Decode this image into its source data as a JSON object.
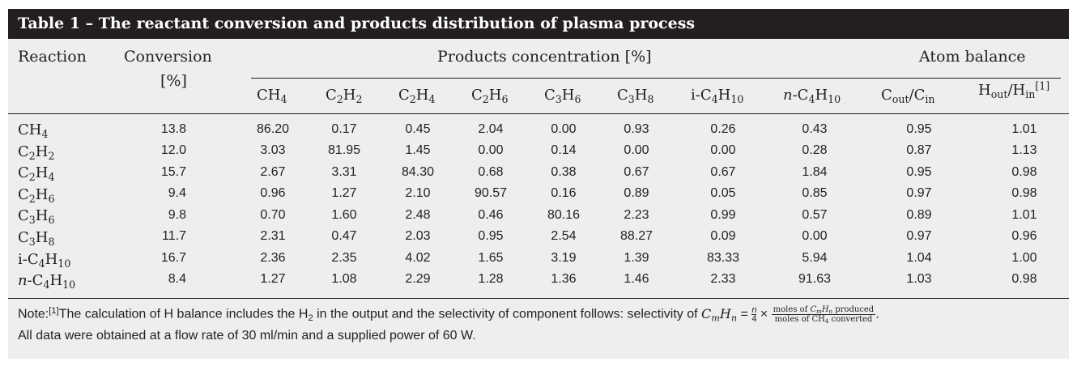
{
  "table": {
    "title": "Table 1 – The reactant conversion and products distribution of plasma process",
    "headers": {
      "reaction": "Reaction",
      "conversion": "Conversion",
      "conversion_unit": "[%]",
      "products": "Products concentration [%]",
      "atom_balance": "Atom balance",
      "columns": [
        "CH4",
        "C2H2",
        "C2H4",
        "C2H6",
        "C3H6",
        "C3H8",
        "i-C4H10",
        "n-C4H10",
        "Cout/Cin",
        "Hout/Hin"
      ],
      "h_balance_ref": "[1]"
    },
    "rows": [
      {
        "reaction": "CH4",
        "conversion": "13.8",
        "values": [
          "86.20",
          "0.17",
          "0.45",
          "2.04",
          "0.00",
          "0.93",
          "0.26",
          "0.43",
          "0.95",
          "1.01"
        ]
      },
      {
        "reaction": "C2H2",
        "conversion": "12.0",
        "values": [
          "3.03",
          "81.95",
          "1.45",
          "0.00",
          "0.14",
          "0.00",
          "0.00",
          "0.28",
          "0.87",
          "1.13"
        ]
      },
      {
        "reaction": "C2H4",
        "conversion": "15.7",
        "values": [
          "2.67",
          "3.31",
          "84.30",
          "0.68",
          "0.38",
          "0.67",
          "0.67",
          "1.84",
          "0.95",
          "0.98"
        ]
      },
      {
        "reaction": "C2H6",
        "conversion": "9.4",
        "values": [
          "0.96",
          "1.27",
          "2.10",
          "90.57",
          "0.16",
          "0.89",
          "0.05",
          "0.85",
          "0.97",
          "0.98"
        ]
      },
      {
        "reaction": "C3H6",
        "conversion": "9.8",
        "values": [
          "0.70",
          "1.60",
          "2.48",
          "0.46",
          "80.16",
          "2.23",
          "0.99",
          "0.57",
          "0.89",
          "1.01"
        ]
      },
      {
        "reaction": "C3H8",
        "conversion": "11.7",
        "values": [
          "2.31",
          "0.47",
          "2.03",
          "0.95",
          "2.54",
          "88.27",
          "0.09",
          "0.00",
          "0.97",
          "0.96"
        ]
      },
      {
        "reaction": "i-C4H10",
        "conversion": "16.7",
        "values": [
          "2.36",
          "2.35",
          "4.02",
          "1.65",
          "3.19",
          "1.39",
          "83.33",
          "5.94",
          "1.04",
          "1.00"
        ]
      },
      {
        "reaction": "n-C4H10",
        "conversion": "8.4",
        "values": [
          "1.27",
          "1.08",
          "2.29",
          "1.28",
          "1.36",
          "1.46",
          "2.33",
          "91.63",
          "1.03",
          "0.98"
        ]
      }
    ],
    "note": {
      "label": "Note:",
      "ref": "[1]",
      "line1_a": "The calculation of H balance includes the H",
      "line1_b": " in the output and the selectivity of component follows: selectivity of ",
      "formula_lhs": "CmHn",
      "formula_eq": " = ",
      "n_over_4_num": "n",
      "n_over_4_den": "4",
      "times": " × ",
      "frac_num": "moles of CmHn produced",
      "frac_den": "moles of CH4 converted",
      "period": ".",
      "line2": "All data were obtained at a flow rate of 30 ml/min and a supplied power of 60 W."
    }
  }
}
